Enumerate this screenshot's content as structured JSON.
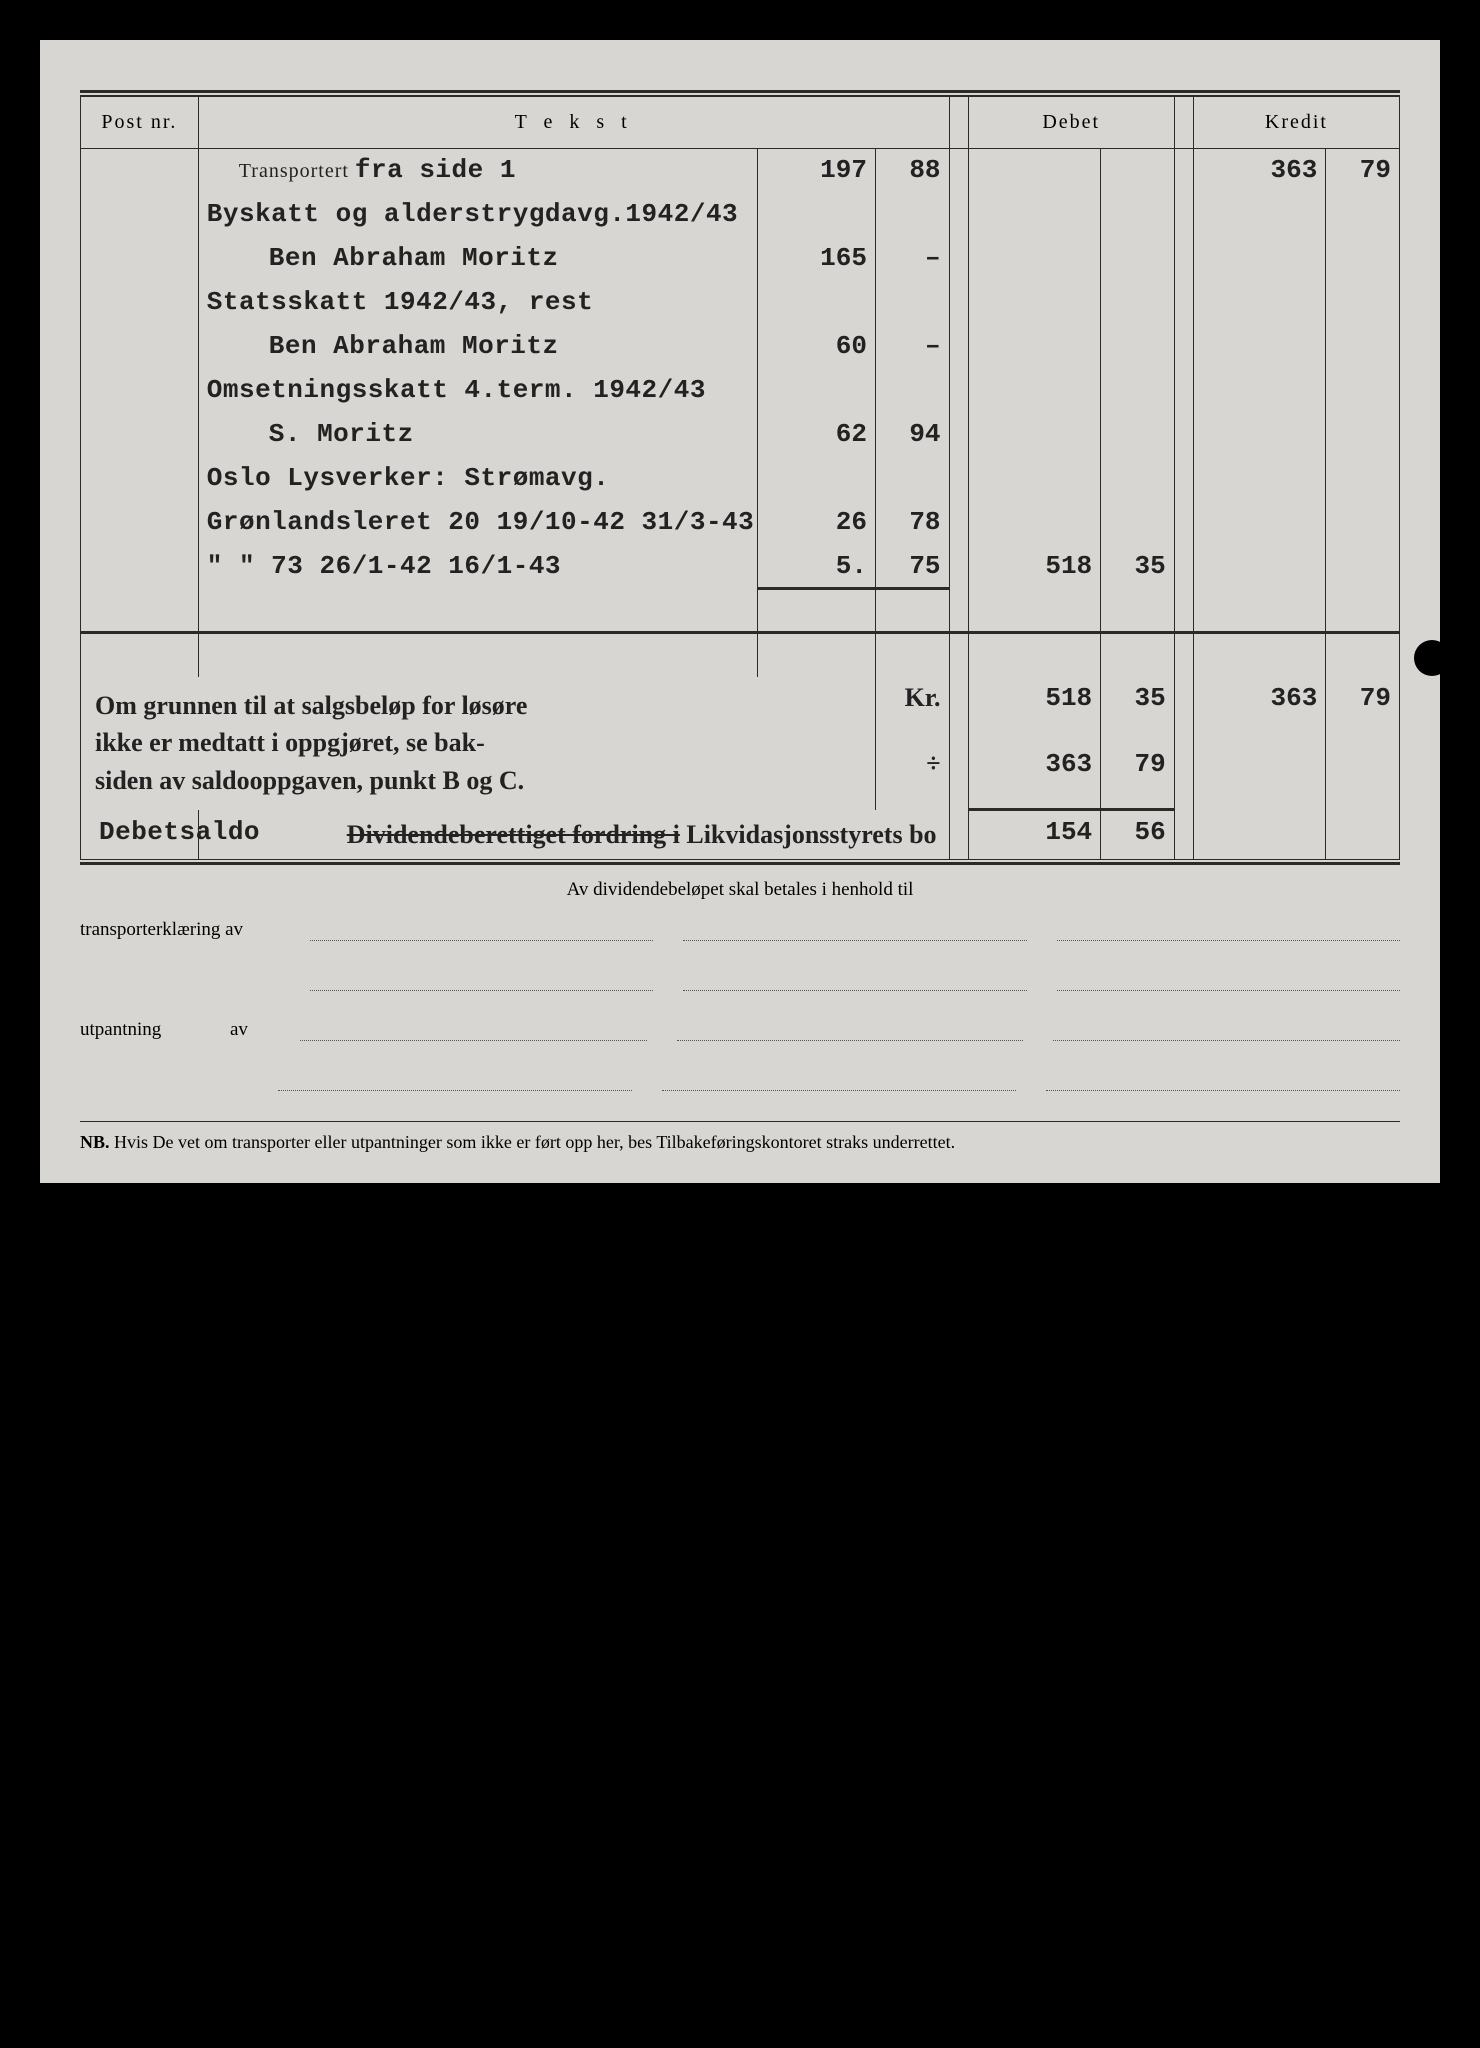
{
  "colors": {
    "page_bg": "#d8d6d2",
    "frame_bg": "#000000",
    "ink": "#222222",
    "rule": "#2a2a2a"
  },
  "headers": {
    "postnr": "Post nr.",
    "tekst": "T e k s t",
    "debet": "Debet",
    "kredit": "Kredit"
  },
  "rows": [
    {
      "tekst_printed": "Transportert",
      "tekst_typed": "fra side 1",
      "indent": 1,
      "a1": "197",
      "a2": "88",
      "kre1": "363",
      "kre2": "79"
    },
    {
      "tekst_typed": "Byskatt og alderstrygdavg.1942/43"
    },
    {
      "tekst_typed": "Ben Abraham Moritz",
      "indent": 2,
      "a1": "165",
      "a2": "–"
    },
    {
      "tekst_typed": "Statsskatt 1942/43, rest"
    },
    {
      "tekst_typed": "Ben Abraham Moritz",
      "indent": 2,
      "a1": "60",
      "a2": "–"
    },
    {
      "tekst_typed": "Omsetningsskatt 4.term. 1942/43"
    },
    {
      "tekst_typed": "S. Moritz",
      "indent": 2,
      "a1": "62",
      "a2": "94"
    },
    {
      "tekst_typed": "Oslo Lysverker: Strømavg."
    },
    {
      "tekst_typed": "Grønlandsleret 20 19/10-42 31/3-43",
      "a1": "26",
      "a2": "78"
    },
    {
      "tekst_typed": "\"         \"     73 26/1-42 16/1-43",
      "a1": "5.",
      "a2": "75",
      "deb1": "518",
      "deb2": "35",
      "underline": true
    }
  ],
  "footer": {
    "note_line1": "Om grunnen til at salgsbeløp for løsøre",
    "note_line2": "ikke er medtatt i oppgjøret, se bak-",
    "note_line3": "siden av saldooppgaven, punkt B og C.",
    "kr_label": "Kr.",
    "div_label": "÷",
    "sum_deb1": "518",
    "sum_deb2": "35",
    "sum_kre1": "363",
    "sum_kre2": "79",
    "minus_deb1": "363",
    "minus_deb2": "79",
    "saldo_label": "Debetsaldo",
    "saldo_text_strike": "Dividendeberettiget fordring i",
    "saldo_text2": "Likvidasjonsstyrets bo",
    "saldo_deb1": "154",
    "saldo_deb2": "56"
  },
  "below": {
    "center": "Av dividendebeløpet skal betales i henhold til",
    "label1": "transporterklæring av",
    "label2": "utpantning",
    "label2b": "av",
    "nb": "NB.  Hvis De vet om transporter eller utpantninger som ikke er ført opp her, bes Tilbakeføringskontoret straks underrettet."
  }
}
